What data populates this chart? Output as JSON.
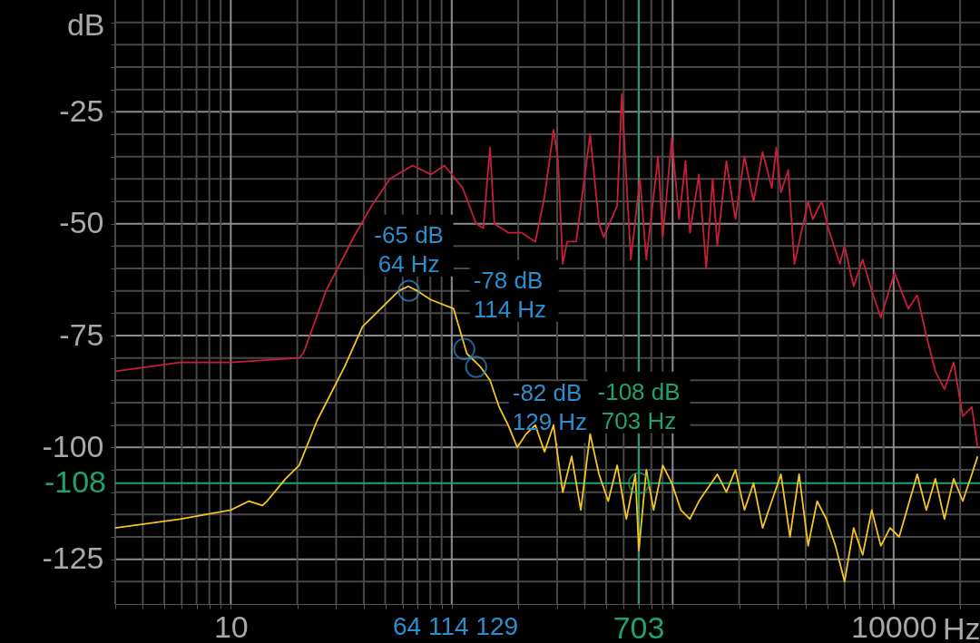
{
  "chart_data": {
    "type": "line",
    "xlabel": "Hz",
    "ylabel": "dB",
    "log": "x",
    "grid": true,
    "xlim": [
      3,
      24600
    ],
    "ylim": [
      -135,
      0
    ],
    "xticks": [
      {
        "value": 3,
        "label": null
      },
      {
        "value": 4,
        "label": null
      },
      {
        "value": 5,
        "label": null
      },
      {
        "value": 6,
        "label": null
      },
      {
        "value": 7,
        "label": null
      },
      {
        "value": 8,
        "label": null
      },
      {
        "value": 9,
        "label": null
      },
      10,
      {
        "value": 20,
        "label": null
      },
      {
        "value": 30,
        "label": null
      },
      {
        "value": 40,
        "label": null
      },
      {
        "value": 50,
        "label": null
      },
      {
        "value": 60,
        "label": null
      },
      {
        "value": 70,
        "label": null
      },
      {
        "value": 80,
        "label": null
      },
      {
        "value": 90,
        "label": null
      },
      {
        "value": 100,
        "label": null
      },
      {
        "value": 200,
        "label": null
      },
      {
        "value": 300,
        "label": null
      },
      {
        "value": 400,
        "label": null
      },
      {
        "value": 500,
        "label": null
      },
      {
        "value": 600,
        "label": null
      },
      {
        "value": 700,
        "label": null
      },
      {
        "value": 800,
        "label": null
      },
      {
        "value": 900,
        "label": null
      },
      {
        "value": 1000,
        "label": null
      },
      {
        "value": 2000,
        "label": null
      },
      {
        "value": 3000,
        "label": null
      },
      {
        "value": 4000,
        "label": null
      },
      {
        "value": 5000,
        "label": null
      },
      {
        "value": 6000,
        "label": null
      },
      {
        "value": 7000,
        "label": null
      },
      {
        "value": 8000,
        "label": null
      },
      {
        "value": 9000,
        "label": null
      },
      10000,
      {
        "value": 20000,
        "label": null
      }
    ],
    "yticks": [
      {
        "value": -130,
        "label": null
      },
      -125,
      {
        "value": -120,
        "label": null
      },
      {
        "value": -115,
        "label": null
      },
      {
        "value": -110,
        "label": null
      },
      {
        "value": -105,
        "label": null
      },
      -100,
      {
        "value": -95,
        "label": null
      },
      {
        "value": -90,
        "label": null
      },
      {
        "value": -85,
        "label": null
      },
      {
        "value": -80,
        "label": null
      },
      -75,
      {
        "value": -70,
        "label": null
      },
      {
        "value": -65,
        "label": null
      },
      {
        "value": -60,
        "label": null
      },
      {
        "value": -55,
        "label": null
      },
      -50,
      {
        "value": -45,
        "label": null
      },
      {
        "value": -40,
        "label": null
      },
      {
        "value": -35,
        "label": null
      },
      {
        "value": -30,
        "label": null
      },
      -25,
      {
        "value": -20,
        "label": null
      },
      {
        "value": -15,
        "label": null
      },
      {
        "value": -10,
        "label": null
      },
      {
        "value": -5,
        "label": null
      }
    ],
    "series": [
      {
        "color": "#c81e3c",
        "x": [
          3,
          5.9,
          10,
          20.4,
          21.3,
          27,
          36,
          43.4,
          52.5,
          66.5,
          80.4,
          92.7,
          112,
          129,
          139,
          149,
          156,
          180,
          207,
          239,
          263,
          289,
          303,
          318,
          333,
          366,
          423,
          464,
          487,
          561,
          589,
          617,
          647,
          711,
          760,
          859,
          902,
          991,
          1069,
          1143,
          1197,
          1315,
          1419,
          1517,
          1592,
          1750,
          1923,
          2113,
          2323,
          2553,
          2810,
          2944,
          3090,
          3334,
          3556,
          4102,
          4305,
          4732,
          5058,
          5715,
          5998,
          6592,
          7244,
          7962,
          8750,
          10090,
          11640,
          12790,
          14060,
          15450,
          16980,
          18700,
          20560,
          22590,
          24000
        ],
        "values": [
          -83,
          -81,
          -81,
          -80,
          -79,
          -65,
          -53,
          -46,
          -40,
          -37,
          -39,
          -37,
          -42,
          -50,
          -51,
          -33,
          -50,
          -52,
          -52,
          -54,
          -44,
          -29,
          -36,
          -59,
          -54,
          -54,
          -30,
          -50,
          -53,
          -46,
          -21,
          -40,
          -58,
          -40,
          -58,
          -35,
          -53,
          -31,
          -49,
          -36,
          -52,
          -39,
          -60,
          -40,
          -55,
          -36,
          -49,
          -35,
          -45,
          -34,
          -42,
          -33,
          -43,
          -38,
          -59,
          -45,
          -49,
          -45,
          -51,
          -59,
          -55,
          -64,
          -58,
          -65,
          -71,
          -61,
          -69,
          -66,
          -75,
          -83,
          -87,
          -81,
          -93,
          -91,
          -100
        ]
      },
      {
        "color": "#f4c522",
        "x": [
          3,
          5.9,
          10,
          12.1,
          13.9,
          14.6,
          17.7,
          20.4,
          24.6,
          32.7,
          39.5,
          47.7,
          57.7,
          63.5,
          69.8,
          80.4,
          102,
          117,
          135,
          149,
          164,
          180,
          198,
          217,
          239,
          263,
          289,
          318,
          349,
          384,
          423,
          464,
          511,
          561,
          617,
          678,
          703,
          760,
          820,
          902,
          991,
          1089,
          1197,
          1315,
          1592,
          1750,
          1923,
          2113,
          2323,
          2553,
          2810,
          3090,
          3396,
          3733,
          4102,
          4508,
          4955,
          5458,
          5998,
          6592,
          7244,
          7962,
          8750,
          9640,
          10590,
          11640,
          12790,
          14060,
          15450,
          16980,
          18700,
          20560,
          22590,
          24000
        ],
        "values": [
          -118,
          -116,
          -114,
          -112,
          -113,
          -112,
          -107,
          -104,
          -94,
          -82,
          -73,
          -69,
          -65,
          -64,
          -65,
          -67,
          -69,
          -79,
          -82,
          -85,
          -91,
          -95,
          -100,
          -97,
          -95,
          -101,
          -95,
          -110,
          -102,
          -114,
          -97,
          -106,
          -112,
          -104,
          -116,
          -106,
          -123,
          -105,
          -114,
          -104,
          -108,
          -114,
          -116,
          -112,
          -106,
          -110,
          -105,
          -114,
          -108,
          -118,
          -112,
          -106,
          -120,
          -106,
          -122,
          -112,
          -116,
          -122,
          -130,
          -118,
          -124,
          -114,
          -122,
          -118,
          -120,
          -113,
          -106,
          -114,
          -107,
          -116,
          -107,
          -112,
          -106,
          -102
        ]
      }
    ],
    "ref_lines": [
      {
        "axis": "x",
        "value": 703,
        "label": "703",
        "color": "#1fa36c"
      },
      {
        "axis": "y",
        "value": -108,
        "label": "-108",
        "color": "#1fa36c"
      }
    ],
    "annotations": [
      {
        "text": "-65 dB\n64 Hz",
        "x": 64,
        "y": -65
      },
      {
        "text": "-78 dB\n114 Hz",
        "x": 114,
        "y": -78
      },
      {
        "text": "-82 dB\n129 Hz",
        "x": 129,
        "y": -82
      },
      {
        "text": "-108 dB\n703 Hz",
        "x": 703,
        "y": -108
      },
      "64 114 129"
    ]
  }
}
